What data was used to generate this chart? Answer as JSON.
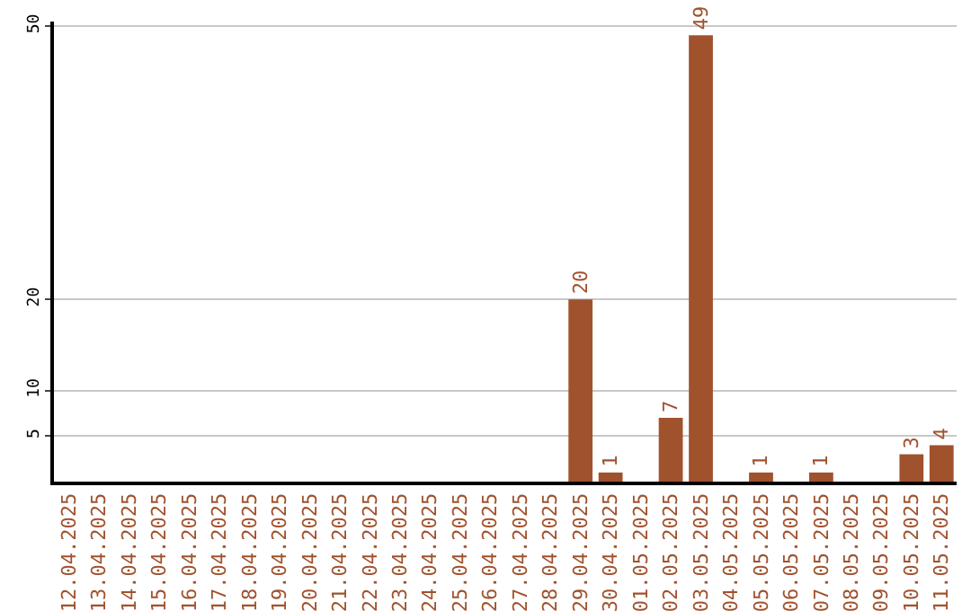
{
  "chart_data": {
    "type": "bar",
    "categories": [
      "12.04.2025",
      "13.04.2025",
      "14.04.2025",
      "15.04.2025",
      "16.04.2025",
      "17.04.2025",
      "18.04.2025",
      "19.04.2025",
      "20.04.2025",
      "21.04.2025",
      "22.04.2025",
      "23.04.2025",
      "24.04.2025",
      "25.04.2025",
      "26.04.2025",
      "27.04.2025",
      "28.04.2025",
      "29.04.2025",
      "30.04.2025",
      "01.05.2025",
      "02.05.2025",
      "03.05.2025",
      "04.05.2025",
      "05.05.2025",
      "06.05.2025",
      "07.05.2025",
      "08.05.2025",
      "09.05.2025",
      "10.05.2025",
      "11.05.2025"
    ],
    "values": [
      0,
      0,
      0,
      0,
      0,
      0,
      0,
      0,
      0,
      0,
      0,
      0,
      0,
      0,
      0,
      0,
      0,
      20,
      1,
      0,
      7,
      49,
      0,
      1,
      0,
      1,
      0,
      0,
      3,
      4
    ],
    "value_labels": [
      null,
      null,
      null,
      null,
      null,
      null,
      null,
      null,
      null,
      null,
      null,
      null,
      null,
      null,
      null,
      null,
      null,
      "20",
      "1",
      null,
      "7",
      "49",
      null,
      "1",
      null,
      "1",
      null,
      null,
      "3",
      "4"
    ],
    "color": "#a0522d",
    "ylim": [
      0,
      50.5
    ],
    "yticks": [
      5,
      10,
      20,
      50
    ],
    "grid": "y"
  }
}
